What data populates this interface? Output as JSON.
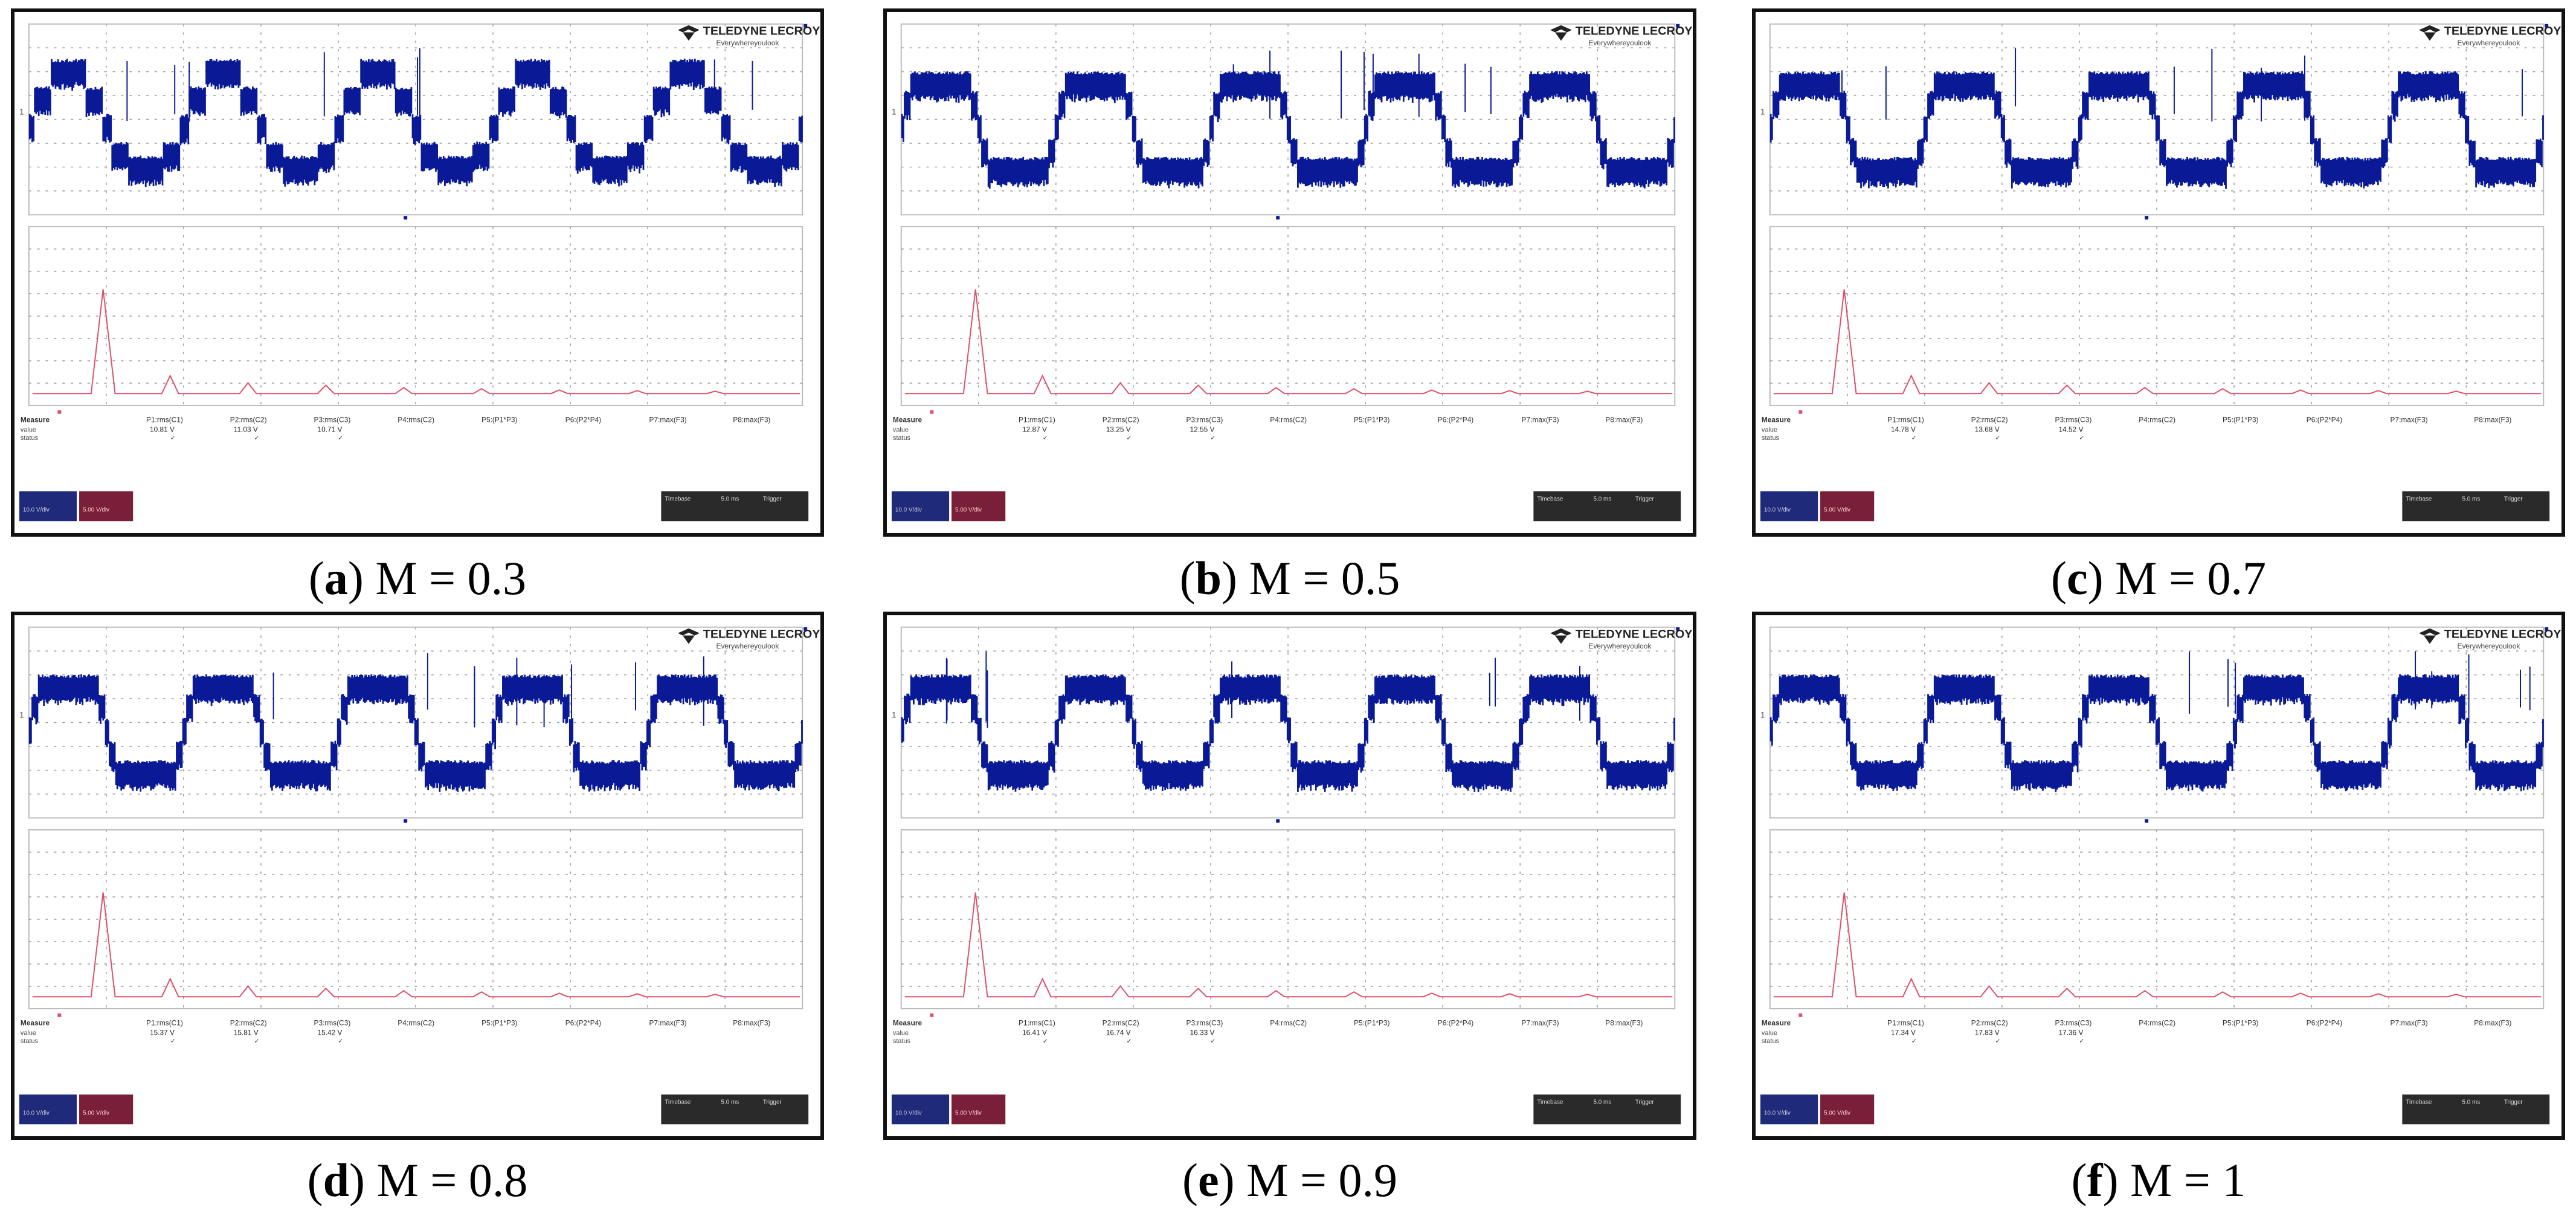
{
  "colors": {
    "waveform": "#0a1a96",
    "spectrum": "#e0506a",
    "grid": "#9a9a9a",
    "frame": "#111111"
  },
  "logo": {
    "brand": "TELEDYNE LECROY",
    "tagline": "Everywhereyoulook"
  },
  "measure_labels": {
    "title": "Measure",
    "row2": "value",
    "row3": "status",
    "p1": "P1:rms(C1)",
    "p2": "P2:rms(C2)",
    "p3": "P3:rms(C3)",
    "p4": "P4:rms(C2)",
    "p5": "P5:(P1*P3)",
    "p6": "P6:(P2*P4)",
    "p7": "P7:max(F3)",
    "p8": "P8:max(F3)"
  },
  "panels": [
    {
      "letter": "a",
      "label": " M = 0.3",
      "levels": 3,
      "values": [
        "10.81 V",
        "11.03 V",
        "10.71 V"
      ]
    },
    {
      "letter": "b",
      "label": " M = 0.5",
      "levels": 5,
      "values": [
        "12.87 V",
        "13.25 V",
        "12.55 V"
      ]
    },
    {
      "letter": "c",
      "label": " M = 0.7",
      "levels": 5,
      "values": [
        "14.78 V",
        "13.68 V",
        "14.52 V"
      ]
    },
    {
      "letter": "d",
      "label": " M = 0.8",
      "levels": 5,
      "values": [
        "15.37 V",
        "15.81 V",
        "15.42 V"
      ]
    },
    {
      "letter": "e",
      "label": " M = 0.9",
      "levels": 5,
      "values": [
        "16.41 V",
        "16.74 V",
        "16.33 V"
      ]
    },
    {
      "letter": "f",
      "label": " M = 1",
      "levels": 5,
      "values": [
        "17.34 V",
        "17.83 V",
        "17.36 V"
      ]
    }
  ]
}
